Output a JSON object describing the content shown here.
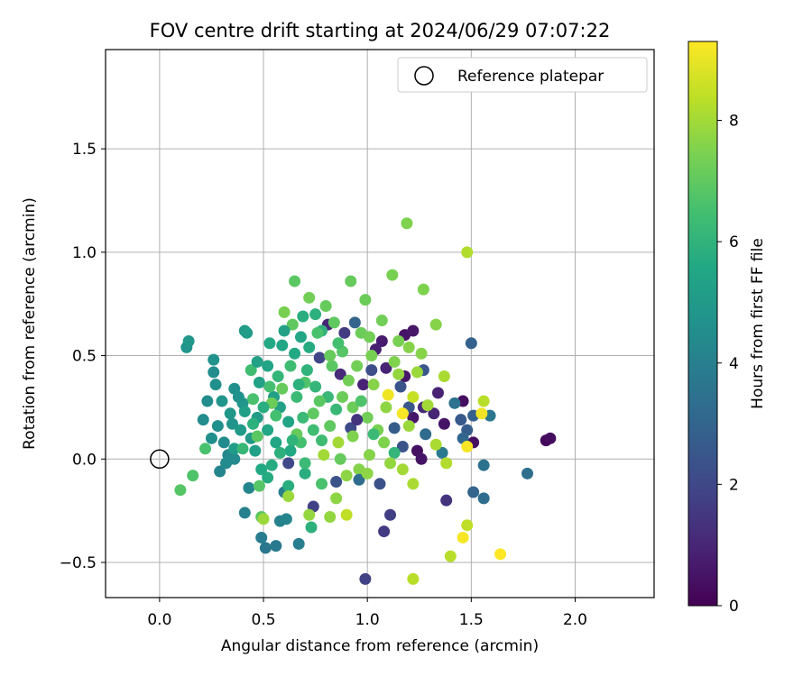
{
  "chart_data": {
    "type": "scatter",
    "title": "FOV centre drift starting at 2024/06/29 07:07:22",
    "xlabel": "Angular distance from reference (arcmin)",
    "ylabel": "Rotation from reference (arcmin)",
    "xlim": [
      -0.26,
      2.38
    ],
    "ylim": [
      -0.67,
      1.98
    ],
    "xticks": [
      0.0,
      0.5,
      1.0,
      1.5,
      2.0
    ],
    "xtick_labels": [
      "0.0",
      "0.5",
      "1.0",
      "1.5",
      "2.0"
    ],
    "yticks": [
      -0.5,
      0.0,
      0.5,
      1.0,
      1.5
    ],
    "ytick_labels": [
      "−0.5",
      "0.0",
      "0.5",
      "1.0",
      "1.5"
    ],
    "grid": true,
    "legend": {
      "position": "top-right",
      "label": "Reference platepar"
    },
    "reference_point": {
      "x": 0.0,
      "y": 0.0
    },
    "colorbar": {
      "label": "Hours from first FF file",
      "colormap": "viridis",
      "range": [
        0,
        9.3
      ],
      "ticks": [
        0,
        2,
        4,
        6,
        8
      ],
      "tick_labels": [
        "0",
        "2",
        "4",
        "6",
        "8"
      ]
    },
    "points": [
      {
        "x": 1.86,
        "y": 0.09,
        "c": 0.2
      },
      {
        "x": 1.88,
        "y": 0.1,
        "c": 0.3
      },
      {
        "x": 1.46,
        "y": 0.28,
        "c": 0.3
      },
      {
        "x": 1.51,
        "y": 0.08,
        "c": 0.4
      },
      {
        "x": 1.37,
        "y": 0.17,
        "c": 0.5
      },
      {
        "x": 1.24,
        "y": 0.04,
        "c": 0.4
      },
      {
        "x": 1.26,
        "y": 0.0,
        "c": 0.5
      },
      {
        "x": 1.22,
        "y": 0.2,
        "c": 0.6
      },
      {
        "x": 1.18,
        "y": 0.6,
        "c": 0.5
      },
      {
        "x": 1.22,
        "y": 0.62,
        "c": 0.6
      },
      {
        "x": 1.18,
        "y": 0.4,
        "c": 0.6
      },
      {
        "x": 1.07,
        "y": 0.57,
        "c": 0.7
      },
      {
        "x": 1.04,
        "y": 0.53,
        "c": 0.8
      },
      {
        "x": 1.09,
        "y": 0.44,
        "c": 0.9
      },
      {
        "x": 0.98,
        "y": 0.36,
        "c": 0.9
      },
      {
        "x": 1.34,
        "y": 0.32,
        "c": 0.9
      },
      {
        "x": 1.32,
        "y": 0.22,
        "c": 1.0
      },
      {
        "x": 1.27,
        "y": 0.25,
        "c": 1.1
      },
      {
        "x": 0.81,
        "y": 0.65,
        "c": 1.0
      },
      {
        "x": 0.87,
        "y": 0.41,
        "c": 1.1
      },
      {
        "x": 1.38,
        "y": -0.2,
        "c": 1.4
      },
      {
        "x": 1.08,
        "y": -0.35,
        "c": 1.6
      },
      {
        "x": 1.11,
        "y": -0.27,
        "c": 1.7
      },
      {
        "x": 0.99,
        "y": -0.58,
        "c": 1.8
      },
      {
        "x": 0.74,
        "y": -0.23,
        "c": 1.8
      },
      {
        "x": 0.62,
        "y": -0.02,
        "c": 2.0
      },
      {
        "x": 0.77,
        "y": 0.49,
        "c": 1.9
      },
      {
        "x": 0.92,
        "y": 0.15,
        "c": 2.1
      },
      {
        "x": 1.06,
        "y": -0.12,
        "c": 2.3
      },
      {
        "x": 1.17,
        "y": 0.06,
        "c": 2.4
      },
      {
        "x": 1.16,
        "y": 0.35,
        "c": 2.4
      },
      {
        "x": 1.27,
        "y": 0.43,
        "c": 2.5
      },
      {
        "x": 1.2,
        "y": 0.25,
        "c": 2.5
      },
      {
        "x": 1.45,
        "y": 0.19,
        "c": 2.6
      },
      {
        "x": 1.48,
        "y": 0.14,
        "c": 2.7
      },
      {
        "x": 1.51,
        "y": 0.21,
        "c": 2.8
      },
      {
        "x": 1.5,
        "y": 0.56,
        "c": 2.9
      },
      {
        "x": 1.51,
        "y": -0.16,
        "c": 3.0
      },
      {
        "x": 1.46,
        "y": 0.1,
        "c": 3.1
      },
      {
        "x": 1.56,
        "y": -0.19,
        "c": 3.3
      },
      {
        "x": 1.77,
        "y": -0.07,
        "c": 3.4
      },
      {
        "x": 1.56,
        "y": -0.03,
        "c": 3.5
      },
      {
        "x": 1.59,
        "y": 0.21,
        "c": 3.6
      },
      {
        "x": 1.42,
        "y": 0.27,
        "c": 3.5
      },
      {
        "x": 1.36,
        "y": 0.03,
        "c": 3.8
      },
      {
        "x": 0.6,
        "y": -0.16,
        "c": 3.9
      },
      {
        "x": 0.67,
        "y": -0.41,
        "c": 3.9
      },
      {
        "x": 0.56,
        "y": -0.42,
        "c": 3.8
      },
      {
        "x": 0.51,
        "y": -0.43,
        "c": 3.7
      },
      {
        "x": 0.49,
        "y": -0.38,
        "c": 3.9
      },
      {
        "x": 0.41,
        "y": -0.26,
        "c": 4.0
      },
      {
        "x": 0.58,
        "y": -0.3,
        "c": 4.1
      },
      {
        "x": 0.61,
        "y": -0.29,
        "c": 4.2
      },
      {
        "x": 0.43,
        "y": -0.14,
        "c": 4.2
      },
      {
        "x": 0.29,
        "y": -0.06,
        "c": 4.2
      },
      {
        "x": 0.33,
        "y": 0.02,
        "c": 4.3
      },
      {
        "x": 0.36,
        "y": 0.0,
        "c": 4.4
      },
      {
        "x": 0.31,
        "y": 0.08,
        "c": 4.4
      },
      {
        "x": 0.21,
        "y": 0.19,
        "c": 4.5
      },
      {
        "x": 0.28,
        "y": 0.16,
        "c": 4.6
      },
      {
        "x": 0.23,
        "y": 0.28,
        "c": 4.5
      },
      {
        "x": 0.27,
        "y": 0.36,
        "c": 4.6
      },
      {
        "x": 0.26,
        "y": 0.42,
        "c": 4.5
      },
      {
        "x": 0.26,
        "y": 0.48,
        "c": 4.7
      },
      {
        "x": 0.13,
        "y": 0.54,
        "c": 4.8
      },
      {
        "x": 0.14,
        "y": 0.57,
        "c": 4.9
      },
      {
        "x": 0.41,
        "y": 0.62,
        "c": 5.0
      },
      {
        "x": 0.42,
        "y": 0.61,
        "c": 5.1
      },
      {
        "x": 0.36,
        "y": 0.34,
        "c": 4.6
      },
      {
        "x": 0.38,
        "y": 0.3,
        "c": 4.7
      },
      {
        "x": 0.4,
        "y": 0.27,
        "c": 4.8
      },
      {
        "x": 0.34,
        "y": 0.22,
        "c": 4.9
      },
      {
        "x": 0.35,
        "y": 0.17,
        "c": 4.8
      },
      {
        "x": 0.39,
        "y": 0.14,
        "c": 5.0
      },
      {
        "x": 0.36,
        "y": 0.05,
        "c": 5.1
      },
      {
        "x": 0.46,
        "y": 0.04,
        "c": 5.2
      },
      {
        "x": 0.44,
        "y": 0.1,
        "c": 5.0
      },
      {
        "x": 0.47,
        "y": 0.2,
        "c": 5.1
      },
      {
        "x": 0.48,
        "y": 0.37,
        "c": 5.3
      },
      {
        "x": 0.52,
        "y": 0.45,
        "c": 5.4
      },
      {
        "x": 0.55,
        "y": 0.3,
        "c": 5.2
      },
      {
        "x": 0.58,
        "y": 0.25,
        "c": 5.3
      },
      {
        "x": 0.62,
        "y": 0.18,
        "c": 5.4
      },
      {
        "x": 0.52,
        "y": 0.14,
        "c": 5.5
      },
      {
        "x": 0.56,
        "y": 0.08,
        "c": 5.5
      },
      {
        "x": 0.63,
        "y": 0.04,
        "c": 5.6
      },
      {
        "x": 0.49,
        "y": -0.05,
        "c": 5.6
      },
      {
        "x": 0.52,
        "y": -0.09,
        "c": 5.7
      },
      {
        "x": 0.62,
        "y": -0.13,
        "c": 5.8
      },
      {
        "x": 0.7,
        "y": -0.07,
        "c": 5.8
      },
      {
        "x": 0.73,
        "y": -0.33,
        "c": 5.9
      },
      {
        "x": 0.59,
        "y": 0.55,
        "c": 5.5
      },
      {
        "x": 0.65,
        "y": 0.51,
        "c": 5.6
      },
      {
        "x": 0.72,
        "y": 0.54,
        "c": 5.7
      },
      {
        "x": 0.69,
        "y": 0.69,
        "c": 5.8
      },
      {
        "x": 0.75,
        "y": 0.7,
        "c": 5.9
      },
      {
        "x": 0.78,
        "y": 0.62,
        "c": 6.0
      },
      {
        "x": 0.71,
        "y": 0.43,
        "c": 6.0
      },
      {
        "x": 0.75,
        "y": 0.35,
        "c": 6.1
      },
      {
        "x": 0.81,
        "y": 0.3,
        "c": 6.2
      },
      {
        "x": 0.85,
        "y": 0.24,
        "c": 6.2
      },
      {
        "x": 0.66,
        "y": 0.3,
        "c": 6.3
      },
      {
        "x": 0.69,
        "y": 0.2,
        "c": 6.3
      },
      {
        "x": 0.74,
        "y": 0.14,
        "c": 6.4
      },
      {
        "x": 0.78,
        "y": 0.09,
        "c": 6.4
      },
      {
        "x": 0.68,
        "y": 0.08,
        "c": 6.5
      },
      {
        "x": 0.56,
        "y": 0.21,
        "c": 6.5
      },
      {
        "x": 0.53,
        "y": 0.35,
        "c": 6.5
      },
      {
        "x": 0.44,
        "y": 0.43,
        "c": 6.4
      },
      {
        "x": 0.45,
        "y": 0.29,
        "c": 6.6
      },
      {
        "x": 0.22,
        "y": 0.05,
        "c": 6.6
      },
      {
        "x": 0.16,
        "y": -0.08,
        "c": 6.7
      },
      {
        "x": 0.1,
        "y": -0.15,
        "c": 6.8
      },
      {
        "x": 0.48,
        "y": -0.13,
        "c": 6.8
      },
      {
        "x": 0.49,
        "y": -0.28,
        "c": 6.9
      },
      {
        "x": 0.65,
        "y": 0.86,
        "c": 6.9
      },
      {
        "x": 0.64,
        "y": 0.65,
        "c": 7.0
      },
      {
        "x": 0.84,
        "y": 0.66,
        "c": 7.0
      },
      {
        "x": 0.8,
        "y": 0.74,
        "c": 7.1
      },
      {
        "x": 0.92,
        "y": 0.86,
        "c": 7.1
      },
      {
        "x": 0.99,
        "y": 0.77,
        "c": 7.2
      },
      {
        "x": 0.97,
        "y": 0.61,
        "c": 7.2
      },
      {
        "x": 1.01,
        "y": 0.59,
        "c": 7.3
      },
      {
        "x": 1.07,
        "y": 0.67,
        "c": 7.3
      },
      {
        "x": 1.15,
        "y": 0.57,
        "c": 7.4
      },
      {
        "x": 1.12,
        "y": 0.89,
        "c": 7.4
      },
      {
        "x": 1.19,
        "y": 1.14,
        "c": 7.5
      },
      {
        "x": 1.27,
        "y": 0.82,
        "c": 7.5
      },
      {
        "x": 1.33,
        "y": 0.65,
        "c": 7.6
      },
      {
        "x": 1.26,
        "y": 0.51,
        "c": 7.6
      },
      {
        "x": 1.2,
        "y": 0.54,
        "c": 7.6
      },
      {
        "x": 1.13,
        "y": 0.47,
        "c": 7.5
      },
      {
        "x": 1.02,
        "y": 0.5,
        "c": 7.4
      },
      {
        "x": 0.95,
        "y": 0.45,
        "c": 7.3
      },
      {
        "x": 0.91,
        "y": 0.38,
        "c": 7.3
      },
      {
        "x": 0.88,
        "y": 0.3,
        "c": 7.2
      },
      {
        "x": 0.93,
        "y": 0.25,
        "c": 7.2
      },
      {
        "x": 1.0,
        "y": 0.2,
        "c": 7.3
      },
      {
        "x": 1.05,
        "y": 0.14,
        "c": 7.4
      },
      {
        "x": 1.08,
        "y": 0.08,
        "c": 7.5
      },
      {
        "x": 1.01,
        "y": 0.02,
        "c": 7.6
      },
      {
        "x": 0.96,
        "y": -0.05,
        "c": 7.6
      },
      {
        "x": 0.9,
        "y": -0.08,
        "c": 7.7
      },
      {
        "x": 0.85,
        "y": -0.19,
        "c": 7.7
      },
      {
        "x": 0.82,
        "y": -0.28,
        "c": 7.8
      },
      {
        "x": 0.72,
        "y": -0.27,
        "c": 7.8
      },
      {
        "x": 0.62,
        "y": -0.18,
        "c": 7.9
      },
      {
        "x": 0.5,
        "y": -0.29,
        "c": 7.9
      },
      {
        "x": 0.79,
        "y": 0.02,
        "c": 8.0
      },
      {
        "x": 0.86,
        "y": 0.08,
        "c": 8.0
      },
      {
        "x": 1.17,
        "y": -0.05,
        "c": 8.0
      },
      {
        "x": 1.22,
        "y": -0.12,
        "c": 8.1
      },
      {
        "x": 1.33,
        "y": 0.07,
        "c": 8.1
      },
      {
        "x": 1.38,
        "y": -0.02,
        "c": 8.2
      },
      {
        "x": 1.37,
        "y": 0.4,
        "c": 8.1
      },
      {
        "x": 1.48,
        "y": 1.0,
        "c": 8.2
      },
      {
        "x": 1.56,
        "y": 0.28,
        "c": 8.3
      },
      {
        "x": 1.4,
        "y": -0.47,
        "c": 8.3
      },
      {
        "x": 1.22,
        "y": -0.58,
        "c": 8.3
      },
      {
        "x": 0.9,
        "y": -0.27,
        "c": 8.4
      },
      {
        "x": 1.48,
        "y": -0.32,
        "c": 8.4
      },
      {
        "x": 1.22,
        "y": 0.3,
        "c": 8.5
      },
      {
        "x": 1.17,
        "y": 0.22,
        "c": 8.6
      },
      {
        "x": 1.1,
        "y": 0.31,
        "c": 9.1
      },
      {
        "x": 1.17,
        "y": 0.22,
        "c": 9.2
      },
      {
        "x": 1.48,
        "y": 0.06,
        "c": 9.2
      },
      {
        "x": 1.55,
        "y": 0.22,
        "c": 9.1
      },
      {
        "x": 1.46,
        "y": -0.38,
        "c": 9.2
      },
      {
        "x": 1.64,
        "y": -0.46,
        "c": 9.3
      },
      {
        "x": 1.13,
        "y": 0.03,
        "c": 6.1
      },
      {
        "x": 1.03,
        "y": 0.12,
        "c": 6.3
      },
      {
        "x": 0.97,
        "y": 0.28,
        "c": 6.7
      },
      {
        "x": 0.88,
        "y": 0.52,
        "c": 6.8
      },
      {
        "x": 0.83,
        "y": 0.45,
        "c": 6.9
      },
      {
        "x": 0.74,
        "y": 0.22,
        "c": 7.0
      },
      {
        "x": 0.66,
        "y": 0.12,
        "c": 7.1
      },
      {
        "x": 0.59,
        "y": 0.34,
        "c": 7.1
      },
      {
        "x": 0.54,
        "y": 0.27,
        "c": 7.2
      },
      {
        "x": 0.47,
        "y": 0.11,
        "c": 6.9
      },
      {
        "x": 0.4,
        "y": 0.05,
        "c": 6.2
      },
      {
        "x": 0.45,
        "y": 0.17,
        "c": 5.9
      },
      {
        "x": 0.5,
        "y": 0.25,
        "c": 5.8
      },
      {
        "x": 0.57,
        "y": 0.4,
        "c": 6.1
      },
      {
        "x": 0.63,
        "y": 0.45,
        "c": 6.4
      },
      {
        "x": 0.7,
        "y": 0.37,
        "c": 6.7
      },
      {
        "x": 0.77,
        "y": 0.28,
        "c": 6.9
      },
      {
        "x": 0.82,
        "y": 0.16,
        "c": 7.0
      },
      {
        "x": 0.87,
        "y": 0.0,
        "c": 7.1
      },
      {
        "x": 0.78,
        "y": -0.12,
        "c": 6.6
      },
      {
        "x": 0.7,
        "y": -0.02,
        "c": 6.3
      },
      {
        "x": 0.64,
        "y": 0.09,
        "c": 6.0
      },
      {
        "x": 0.54,
        "y": -0.03,
        "c": 5.7
      },
      {
        "x": 0.41,
        "y": 0.23,
        "c": 5.2
      },
      {
        "x": 0.3,
        "y": 0.28,
        "c": 4.8
      },
      {
        "x": 0.25,
        "y": 0.1,
        "c": 4.6
      },
      {
        "x": 0.32,
        "y": -0.02,
        "c": 4.4
      },
      {
        "x": 0.6,
        "y": 0.62,
        "c": 5.3
      },
      {
        "x": 0.68,
        "y": 0.59,
        "c": 5.5
      },
      {
        "x": 0.86,
        "y": 0.56,
        "c": 6.5
      },
      {
        "x": 0.94,
        "y": 0.66,
        "c": 3.0
      },
      {
        "x": 1.02,
        "y": 0.43,
        "c": 2.2
      },
      {
        "x": 0.95,
        "y": 0.19,
        "c": 1.4
      },
      {
        "x": 1.13,
        "y": 0.15,
        "c": 2.7
      },
      {
        "x": 1.28,
        "y": 0.12,
        "c": 3.2
      },
      {
        "x": 0.89,
        "y": 0.61,
        "c": 1.6
      },
      {
        "x": 0.85,
        "y": -0.11,
        "c": 2.4
      },
      {
        "x": 0.96,
        "y": -0.1,
        "c": 3.3
      },
      {
        "x": 1.03,
        "y": 0.36,
        "c": 7.6
      },
      {
        "x": 1.09,
        "y": 0.25,
        "c": 7.7
      },
      {
        "x": 1.15,
        "y": 0.41,
        "c": 7.8
      },
      {
        "x": 1.24,
        "y": 0.42,
        "c": 7.9
      },
      {
        "x": 1.29,
        "y": 0.26,
        "c": 8.0
      },
      {
        "x": 1.2,
        "y": 0.16,
        "c": 7.9
      },
      {
        "x": 1.11,
        "y": -0.02,
        "c": 7.8
      },
      {
        "x": 1.0,
        "y": -0.07,
        "c": 7.7
      },
      {
        "x": 0.93,
        "y": 0.11,
        "c": 7.5
      },
      {
        "x": 0.76,
        "y": 0.61,
        "c": 6.6
      },
      {
        "x": 0.72,
        "y": 0.78,
        "c": 7.3
      },
      {
        "x": 0.82,
        "y": 0.5,
        "c": 7.1
      },
      {
        "x": 0.6,
        "y": 0.71,
        "c": 7.4
      },
      {
        "x": 0.67,
        "y": 0.36,
        "c": 5.9
      },
      {
        "x": 0.58,
        "y": 0.03,
        "c": 5.9
      },
      {
        "x": 0.53,
        "y": 0.56,
        "c": 5.6
      },
      {
        "x": 0.47,
        "y": 0.47,
        "c": 5.3
      }
    ]
  }
}
